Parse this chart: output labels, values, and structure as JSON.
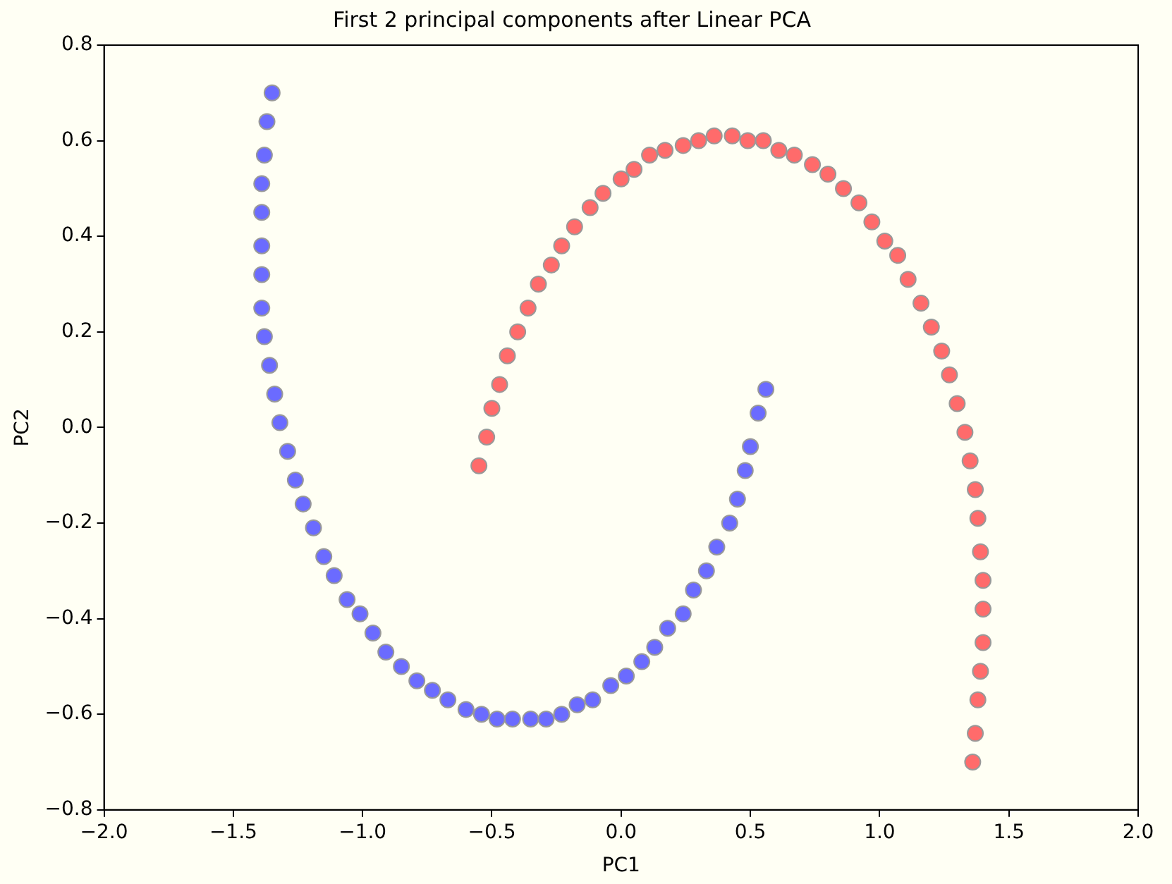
{
  "chart_data": {
    "type": "scatter",
    "title": "First 2 principal components after Linear PCA",
    "xlabel": "PC1",
    "ylabel": "PC2",
    "xlim": [
      -2,
      2
    ],
    "ylim": [
      -0.8,
      0.8
    ],
    "xticks": [
      {
        "value": -2,
        "label": "−2.0"
      },
      {
        "value": -1.5,
        "label": "−1.5"
      },
      {
        "value": -1,
        "label": "−1.0"
      },
      {
        "value": -0.5,
        "label": "−0.5"
      },
      {
        "value": 0,
        "label": "0.0"
      },
      {
        "value": 0.5,
        "label": "0.5"
      },
      {
        "value": 1,
        "label": "1.0"
      },
      {
        "value": 1.5,
        "label": "1.5"
      },
      {
        "value": 2,
        "label": "2.0"
      }
    ],
    "yticks": [
      {
        "value": -0.8,
        "label": "−0.8"
      },
      {
        "value": -0.6,
        "label": "−0.6"
      },
      {
        "value": -0.4,
        "label": "−0.4"
      },
      {
        "value": -0.2,
        "label": "−0.2"
      },
      {
        "value": 0,
        "label": "0.0"
      },
      {
        "value": 0.2,
        "label": "0.2"
      },
      {
        "value": 0.4,
        "label": "0.4"
      },
      {
        "value": 0.6,
        "label": "0.6"
      },
      {
        "value": 0.8,
        "label": "0.8"
      }
    ],
    "marker": "circle",
    "legend": false,
    "grid": false,
    "series": [
      {
        "color": "#6b6bff",
        "x": [
          -1.35,
          -1.37,
          -1.38,
          -1.39,
          -1.39,
          -1.39,
          -1.39,
          -1.39,
          -1.38,
          -1.36,
          -1.34,
          -1.32,
          -1.29,
          -1.26,
          -1.23,
          -1.19,
          -1.15,
          -1.11,
          -1.06,
          -1.01,
          -0.96,
          -0.91,
          -0.85,
          -0.79,
          -0.73,
          -0.67,
          -0.6,
          -0.54,
          -0.48,
          -0.42,
          -0.35,
          -0.29,
          -0.23,
          -0.17,
          -0.11,
          -0.04,
          0.02,
          0.08,
          0.13,
          0.18,
          0.24,
          0.28,
          0.33,
          0.37,
          0.42,
          0.45,
          0.48,
          0.5,
          0.53,
          0.56
        ],
        "values": [
          0.7,
          0.64,
          0.57,
          0.51,
          0.45,
          0.38,
          0.32,
          0.25,
          0.19,
          0.13,
          0.07,
          0.01,
          -0.05,
          -0.11,
          -0.16,
          -0.21,
          -0.27,
          -0.31,
          -0.36,
          -0.39,
          -0.43,
          -0.47,
          -0.5,
          -0.53,
          -0.55,
          -0.57,
          -0.59,
          -0.6,
          -0.61,
          -0.61,
          -0.61,
          -0.61,
          -0.6,
          -0.58,
          -0.57,
          -0.54,
          -0.52,
          -0.49,
          -0.46,
          -0.42,
          -0.39,
          -0.34,
          -0.3,
          -0.25,
          -0.2,
          -0.15,
          -0.09,
          -0.04,
          0.03,
          0.08
        ]
      },
      {
        "color": "#ff6b6b",
        "x": [
          -0.55,
          -0.52,
          -0.5,
          -0.47,
          -0.44,
          -0.4,
          -0.36,
          -0.32,
          -0.27,
          -0.23,
          -0.18,
          -0.12,
          -0.07,
          0.0,
          0.05,
          0.11,
          0.17,
          0.24,
          0.3,
          0.36,
          0.43,
          0.49,
          0.55,
          0.61,
          0.67,
          0.74,
          0.8,
          0.86,
          0.92,
          0.97,
          1.02,
          1.07,
          1.11,
          1.16,
          1.2,
          1.24,
          1.27,
          1.3,
          1.33,
          1.35,
          1.37,
          1.38,
          1.39,
          1.4,
          1.4,
          1.4,
          1.39,
          1.38,
          1.37,
          1.36
        ],
        "values": [
          -0.08,
          -0.02,
          0.04,
          0.09,
          0.15,
          0.2,
          0.25,
          0.3,
          0.34,
          0.38,
          0.42,
          0.46,
          0.49,
          0.52,
          0.54,
          0.57,
          0.58,
          0.59,
          0.6,
          0.61,
          0.61,
          0.6,
          0.6,
          0.58,
          0.57,
          0.55,
          0.53,
          0.5,
          0.47,
          0.43,
          0.39,
          0.36,
          0.31,
          0.26,
          0.21,
          0.16,
          0.11,
          0.05,
          -0.01,
          -0.07,
          -0.13,
          -0.19,
          -0.26,
          -0.32,
          -0.38,
          -0.45,
          -0.51,
          -0.57,
          -0.64,
          -0.7
        ]
      }
    ]
  }
}
